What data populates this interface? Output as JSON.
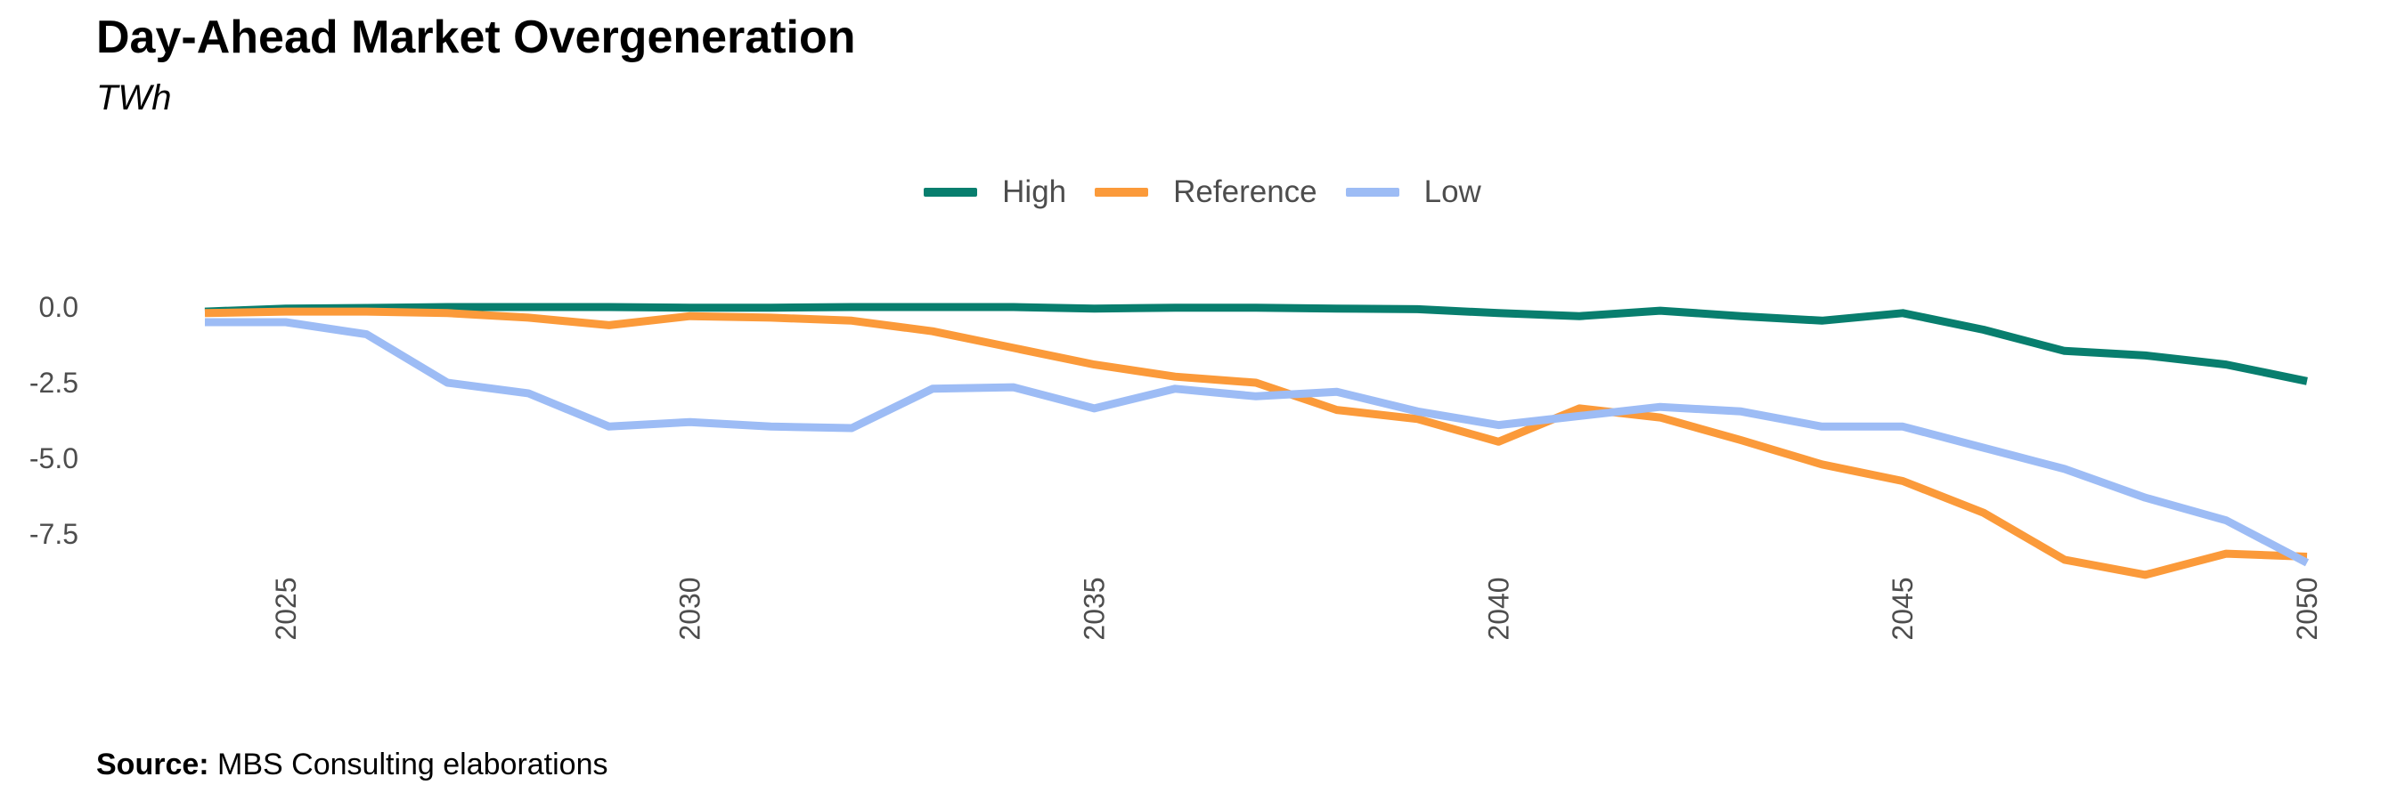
{
  "title": "Day-Ahead Market Overgeneration",
  "subtitle": "TWh",
  "source_label": "Source:",
  "source_text": " MBS Consulting elaborations",
  "chart_data": {
    "type": "line",
    "x": [
      2024,
      2025,
      2026,
      2027,
      2028,
      2029,
      2030,
      2031,
      2032,
      2033,
      2034,
      2035,
      2036,
      2037,
      2038,
      2039,
      2040,
      2041,
      2042,
      2043,
      2044,
      2045,
      2046,
      2047,
      2048,
      2049,
      2050
    ],
    "series": [
      {
        "name": "High",
        "color": "#087e6e",
        "values": [
          -0.15,
          -0.05,
          -0.03,
          0.0,
          0.0,
          0.0,
          -0.02,
          -0.02,
          0.0,
          0.0,
          0.0,
          -0.05,
          -0.02,
          -0.02,
          -0.05,
          -0.07,
          -0.2,
          -0.3,
          -0.12,
          -0.3,
          -0.45,
          -0.2,
          -0.75,
          -1.45,
          -1.6,
          -1.9,
          -2.45
        ]
      },
      {
        "name": "Reference",
        "color": "#fb9a3a",
        "values": [
          -0.2,
          -0.15,
          -0.15,
          -0.2,
          -0.35,
          -0.6,
          -0.3,
          -0.35,
          -0.45,
          -0.8,
          -1.35,
          -1.9,
          -2.3,
          -2.5,
          -3.4,
          -3.7,
          -4.45,
          -3.35,
          -3.65,
          -4.4,
          -5.2,
          -5.75,
          -6.8,
          -8.35,
          -8.85,
          -8.15,
          -8.25
        ]
      },
      {
        "name": "Low",
        "color": "#9dbcf5",
        "values": [
          -0.5,
          -0.5,
          -0.9,
          -2.5,
          -2.85,
          -3.95,
          -3.8,
          -3.95,
          -4.0,
          -2.7,
          -2.65,
          -3.35,
          -2.7,
          -2.95,
          -2.8,
          -3.45,
          -3.9,
          -3.6,
          -3.3,
          -3.45,
          -3.95,
          -3.95,
          -4.65,
          -5.35,
          -6.3,
          -7.05,
          -8.45
        ]
      }
    ],
    "y_ticks": [
      "0.0",
      "-2.5",
      "-5.0",
      "-7.5"
    ],
    "y_tick_values": [
      0,
      -2.5,
      -5,
      -7.5
    ],
    "x_ticks": [
      "2025",
      "2030",
      "2035",
      "2040",
      "2045",
      "2050"
    ],
    "x_tick_values": [
      2025,
      2030,
      2035,
      2040,
      2045,
      2050
    ],
    "xlim": [
      2024,
      2050
    ],
    "ylim": [
      -9.0,
      0.0
    ],
    "grid": false,
    "legend_position": "top"
  }
}
